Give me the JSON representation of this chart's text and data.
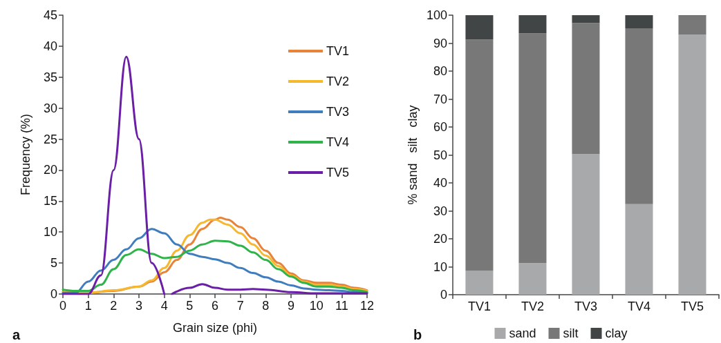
{
  "chart_data": [
    {
      "type": "line",
      "xlabel": "Grain size (phi)",
      "ylabel": "Frequency (%)",
      "xlim": [
        0,
        12
      ],
      "xticks": [
        0,
        1,
        2,
        3,
        4,
        5,
        6,
        7,
        8,
        9,
        10,
        11,
        12
      ],
      "ylim": [
        0,
        45
      ],
      "yticks": [
        0,
        5,
        10,
        15,
        20,
        25,
        30,
        35,
        40,
        45
      ],
      "legend": "top right",
      "marker": "none",
      "line_style": "solid",
      "annotations": [
        "a"
      ],
      "series": [
        {
          "name": "TV1",
          "color": "#e8833a",
          "x": [
            0,
            1,
            2,
            3,
            3.5,
            4,
            4.5,
            5,
            5.5,
            6,
            6.2,
            6.5,
            7,
            7.5,
            8,
            8.5,
            9,
            9.5,
            10,
            10.5,
            11,
            11.5,
            12
          ],
          "values": [
            0.3,
            0.2,
            0.5,
            1.2,
            2,
            3.5,
            5.5,
            8,
            10.5,
            12,
            12.3,
            12,
            10.8,
            9,
            7,
            5,
            3.3,
            2.2,
            1.8,
            1.8,
            1.5,
            1,
            0.6
          ]
        },
        {
          "name": "TV2",
          "color": "#f5b82e",
          "x": [
            0,
            1,
            2,
            3,
            3.5,
            4,
            4.5,
            5,
            5.5,
            5.8,
            6,
            6.5,
            7,
            7.5,
            8,
            8.5,
            9,
            9.5,
            10,
            10.5,
            11,
            11.5,
            12
          ],
          "values": [
            0.3,
            0.2,
            0.6,
            1.2,
            2.2,
            4.2,
            7,
            9.5,
            11.5,
            12,
            12,
            11.2,
            9.8,
            8,
            6.2,
            4.5,
            3,
            2,
            1.5,
            1.5,
            1.2,
            0.8,
            0.5
          ]
        },
        {
          "name": "TV3",
          "color": "#3f7dbf",
          "x": [
            0,
            0.5,
            1,
            1.5,
            2,
            2.5,
            3,
            3.5,
            4,
            4.5,
            5,
            5.5,
            6,
            6.5,
            7,
            7.5,
            8,
            8.5,
            9,
            9.5,
            10,
            10.5,
            11,
            11.5,
            12
          ],
          "values": [
            0.2,
            0.2,
            2,
            3.8,
            5.5,
            7.2,
            9,
            10.5,
            9.8,
            8,
            6.5,
            6,
            5.6,
            5,
            4.2,
            3.4,
            2.7,
            2,
            1.4,
            0.9,
            0.7,
            0.6,
            0.5,
            0.3,
            0.2
          ]
        },
        {
          "name": "TV4",
          "color": "#2fb34a",
          "x": [
            0,
            0.5,
            1,
            1.5,
            2,
            2.5,
            3,
            3.5,
            4,
            4.5,
            5,
            5.5,
            6,
            6.5,
            7,
            7.5,
            8,
            8.5,
            9,
            9.5,
            10,
            10.5,
            11,
            11.5,
            12
          ],
          "values": [
            0.7,
            0.5,
            0.5,
            1.5,
            4,
            6.3,
            7.2,
            6.5,
            5.8,
            6,
            7,
            8,
            8.6,
            8.5,
            7.8,
            6.7,
            5.5,
            4,
            2.8,
            1.8,
            1.2,
            1.2,
            1,
            0.6,
            0.3
          ]
        },
        {
          "name": "TV5",
          "color": "#6a1fa6",
          "x": [
            0,
            0.7,
            1,
            1.5,
            2,
            2.5,
            3,
            3.5,
            4,
            4.15,
            4.3,
            5,
            5.5,
            6,
            6.5,
            7,
            7.5,
            8,
            9,
            10,
            11,
            12
          ],
          "values": [
            0,
            0,
            0,
            3,
            20,
            38.3,
            25,
            5,
            0,
            null,
            0,
            1,
            1.6,
            1,
            0.7,
            0.7,
            0.8,
            0.7,
            0.3,
            0.1,
            0.1,
            0.1
          ]
        }
      ]
    },
    {
      "type": "bar",
      "stacked": true,
      "ylabel": "% sand   silt   clay",
      "categories": [
        "TV1",
        "TV2",
        "TV3",
        "TV4",
        "TV5"
      ],
      "ylim": [
        0,
        100
      ],
      "yticks": [
        0,
        10,
        20,
        30,
        40,
        50,
        60,
        70,
        80,
        90,
        100
      ],
      "legend": "bottom",
      "annotations": [
        "b"
      ],
      "series": [
        {
          "name": "sand",
          "color": "#a7a9aa",
          "values": [
            8.5,
            11.3,
            50.3,
            32.4,
            93
          ]
        },
        {
          "name": "silt",
          "color": "#787878",
          "values": [
            82.8,
            82.2,
            46.9,
            62.9,
            6.8
          ]
        },
        {
          "name": "clay",
          "color": "#424546",
          "values": [
            8.7,
            6.5,
            2.8,
            4.7,
            0.2
          ]
        }
      ]
    }
  ]
}
